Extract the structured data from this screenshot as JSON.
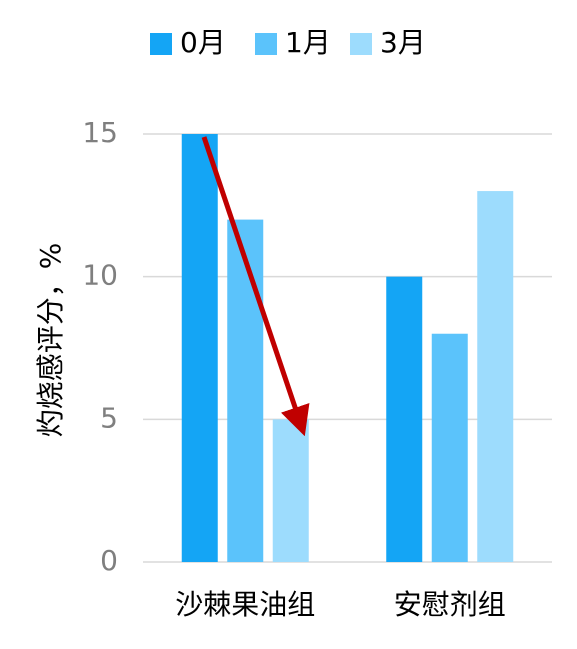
{
  "chart_data": {
    "type": "bar",
    "y_label": "灼烧感评分，%",
    "categories": [
      "沙棘果油组",
      "安慰剂组"
    ],
    "series": [
      {
        "name": "0月",
        "color": "#14a5f5",
        "values": [
          15,
          10
        ]
      },
      {
        "name": "1月",
        "color": "#5bc3fb",
        "values": [
          12,
          8
        ]
      },
      {
        "name": "3月",
        "color": "#9ddcfd",
        "values": [
          5,
          13
        ]
      }
    ],
    "ylim": [
      0,
      15
    ],
    "yticks": [
      0,
      5,
      10,
      15
    ],
    "grid": true
  }
}
